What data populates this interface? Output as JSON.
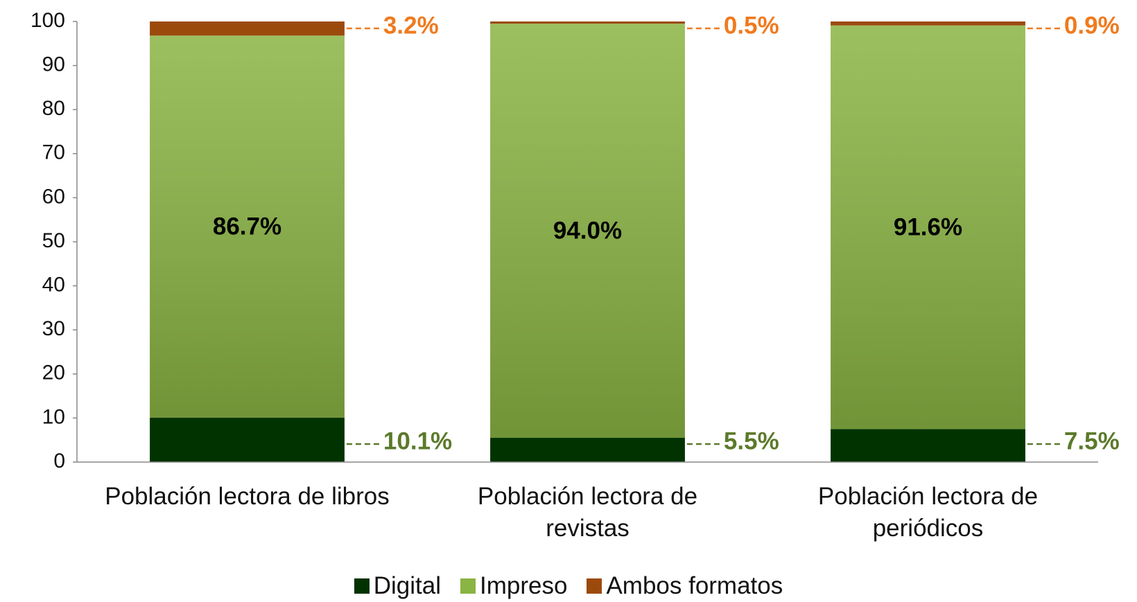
{
  "chart_data": {
    "type": "stacked_bar",
    "categories": [
      "Población lectora de libros",
      "Población lectora de revistas",
      "Población lectora de periódicos"
    ],
    "series": [
      {
        "name": "Digital",
        "color": "#003300",
        "values": [
          10.1,
          5.5,
          7.5
        ],
        "value_labels": [
          "10.1%",
          "5.5%",
          "7.5%"
        ],
        "label_color": "#5b7a2b"
      },
      {
        "name": "Impreso",
        "color": "#8ab443",
        "values": [
          86.7,
          94.0,
          91.6
        ],
        "value_labels": [
          "86.7%",
          "94.0%",
          "91.6%"
        ],
        "label_color": "#000000"
      },
      {
        "name": "Ambos formatos",
        "color": "#9c4a0c",
        "values": [
          3.2,
          0.5,
          0.9
        ],
        "value_labels": [
          "3.2%",
          "0.5%",
          "0.9%"
        ],
        "label_color": "#f07a1e"
      }
    ],
    "ylim": [
      0,
      100
    ],
    "yticks": [
      0,
      10,
      20,
      30,
      40,
      50,
      60,
      70,
      80,
      90,
      100
    ],
    "grid": false,
    "legend": "bottom"
  }
}
